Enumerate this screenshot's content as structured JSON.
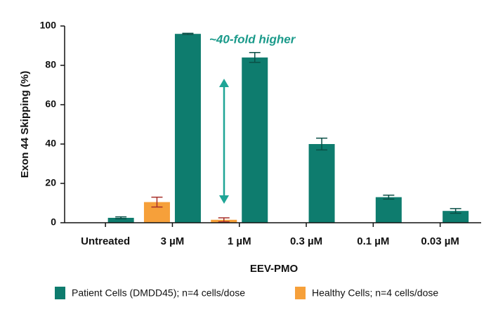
{
  "chart_data": {
    "type": "bar",
    "x_label": "EEV-PMO",
    "y_label": "Exon 44 Skipping (%)",
    "annotation": "~40-fold higher",
    "categories": [
      "Untreated",
      "3 µM",
      "1 µM",
      "0.3 µM",
      "0.1 µM",
      "0.03 µM"
    ],
    "series": [
      {
        "name": "Healthy Cells; n=4 cells/dose",
        "color": "#f6a03a",
        "error_color": "#a8302a",
        "values": [
          null,
          10.5,
          1.5,
          null,
          null,
          null
        ],
        "errors": [
          null,
          2.5,
          1,
          null,
          null,
          null
        ]
      },
      {
        "name": "Patient Cells (DMDD45); n=4 cells/dose",
        "color": "#0e7c6e",
        "error_color": "#0a4f46",
        "values": [
          2.5,
          96,
          84,
          40,
          13,
          6
        ],
        "errors": [
          0.5,
          0.3,
          2.5,
          3,
          1,
          1.2
        ]
      }
    ],
    "ylim": [
      0,
      100
    ],
    "yticks": [
      0,
      20,
      40,
      60,
      80,
      100
    ]
  }
}
